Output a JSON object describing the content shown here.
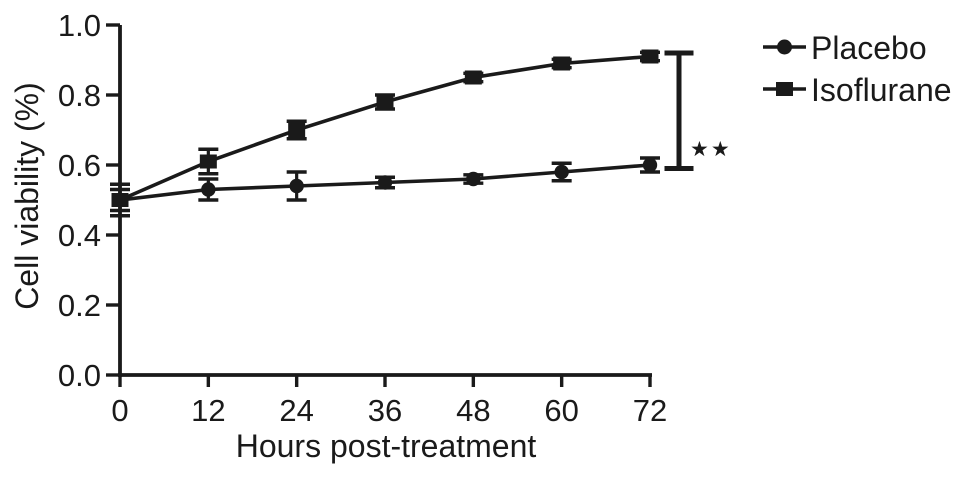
{
  "figure": {
    "background_color": "#ffffff",
    "ink_color": "#1a1a1a"
  },
  "chart_data": {
    "type": "line",
    "title": "",
    "xlabel": "Hours post-treatment",
    "ylabel": "Cell viability (%)",
    "x": [
      0,
      12,
      24,
      36,
      48,
      60,
      72
    ],
    "x_tick_labels": [
      "0",
      "12",
      "24",
      "36",
      "48",
      "60",
      "72"
    ],
    "y_ticks": [
      0.0,
      0.2,
      0.4,
      0.6,
      0.8,
      1.0
    ],
    "y_tick_labels": [
      "0.0",
      "0.2",
      "0.4",
      "0.6",
      "0.8",
      "1.0"
    ],
    "xlim": [
      0,
      72
    ],
    "ylim": [
      0.0,
      1.0
    ],
    "grid": false,
    "legend_position": "right-of-plot-top",
    "series": [
      {
        "name": "Placebo",
        "marker": "circle",
        "values": [
          0.5,
          0.53,
          0.54,
          0.55,
          0.56,
          0.58,
          0.6
        ],
        "errors": [
          0.03,
          0.03,
          0.04,
          0.015,
          0.012,
          0.025,
          0.02
        ]
      },
      {
        "name": "Isoflurane",
        "marker": "square",
        "values": [
          0.5,
          0.61,
          0.7,
          0.78,
          0.85,
          0.89,
          0.91
        ],
        "errors": [
          0.045,
          0.035,
          0.025,
          0.02,
          0.012,
          0.012,
          0.012
        ]
      }
    ],
    "annotation": {
      "type": "significance-bracket",
      "label": "**",
      "display_glyphs": "★★",
      "location": "right of final time point",
      "between_series": [
        "Isoflurane",
        "Placebo"
      ],
      "spans_values": [
        0.59,
        0.92
      ]
    }
  }
}
